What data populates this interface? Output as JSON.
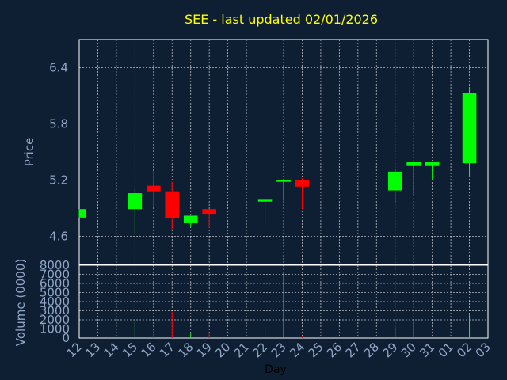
{
  "chart_data": {
    "type": "candlestick",
    "title": "SEE - last updated 02/01/2026",
    "xlabel": "Day",
    "price_ylabel": "Price",
    "volume_ylabel": "Volume (0000)",
    "x_ticks": [
      "12",
      "13",
      "14",
      "15",
      "16",
      "17",
      "18",
      "19",
      "20",
      "21",
      "22",
      "23",
      "24",
      "25",
      "26",
      "27",
      "28",
      "29",
      "30",
      "31",
      "01",
      "02",
      "03"
    ],
    "price_ticks": [
      "4.6",
      "5.2",
      "5.8",
      "6.4"
    ],
    "price_ylim": [
      4.3,
      6.7
    ],
    "volume_ticks": [
      "0",
      "1000",
      "2000",
      "3000",
      "4000",
      "5000",
      "6000",
      "7000",
      "8000"
    ],
    "volume_ylim": [
      0,
      8000
    ],
    "candles": [
      {
        "day": "12",
        "open": 4.8,
        "close": 4.89,
        "high": 4.89,
        "low": 4.8
      },
      {
        "day": "15",
        "open": 4.89,
        "close": 5.06,
        "high": 5.1,
        "low": 4.62
      },
      {
        "day": "16",
        "open": 5.14,
        "close": 5.08,
        "high": 5.3,
        "low": 4.92
      },
      {
        "day": "17",
        "open": 5.08,
        "close": 4.79,
        "high": 5.18,
        "low": 4.67
      },
      {
        "day": "18",
        "open": 4.74,
        "close": 4.82,
        "high": 4.82,
        "low": 4.7
      },
      {
        "day": "19",
        "open": 4.89,
        "close": 4.84,
        "high": 4.89,
        "low": 4.69
      },
      {
        "day": "22",
        "open": 4.97,
        "close": 4.99,
        "high": 4.99,
        "low": 4.73
      },
      {
        "day": "23",
        "open": 5.18,
        "close": 5.19,
        "high": 5.2,
        "low": 4.98
      },
      {
        "day": "24",
        "open": 5.2,
        "close": 5.13,
        "high": 5.22,
        "low": 4.89
      },
      {
        "day": "29",
        "open": 5.09,
        "close": 5.29,
        "high": 5.32,
        "low": 4.95
      },
      {
        "day": "30",
        "open": 5.35,
        "close": 5.39,
        "high": 5.39,
        "low": 5.04
      },
      {
        "day": "31",
        "open": 5.35,
        "close": 5.39,
        "high": 5.39,
        "low": 5.2
      },
      {
        "day": "02",
        "open": 5.38,
        "close": 6.13,
        "high": 6.19,
        "low": 5.23
      }
    ],
    "volume": [
      {
        "day": "15",
        "value": 1900
      },
      {
        "day": "16",
        "value": 800
      },
      {
        "day": "17",
        "value": 2900
      },
      {
        "day": "18",
        "value": 600
      },
      {
        "day": "19",
        "value": 500
      },
      {
        "day": "22",
        "value": 1300
      },
      {
        "day": "23",
        "value": 7200
      },
      {
        "day": "24",
        "value": 150
      },
      {
        "day": "29",
        "value": 1200
      },
      {
        "day": "30",
        "value": 1800
      },
      {
        "day": "02",
        "value": 2600
      }
    ],
    "up_color": "#00ff00",
    "down_color": "#ff0000",
    "grid": true
  },
  "colors": {
    "background": "#0f1f33",
    "grid": "#ffffff",
    "axis_text": "#8fa6c6",
    "title": "#ffff00"
  }
}
